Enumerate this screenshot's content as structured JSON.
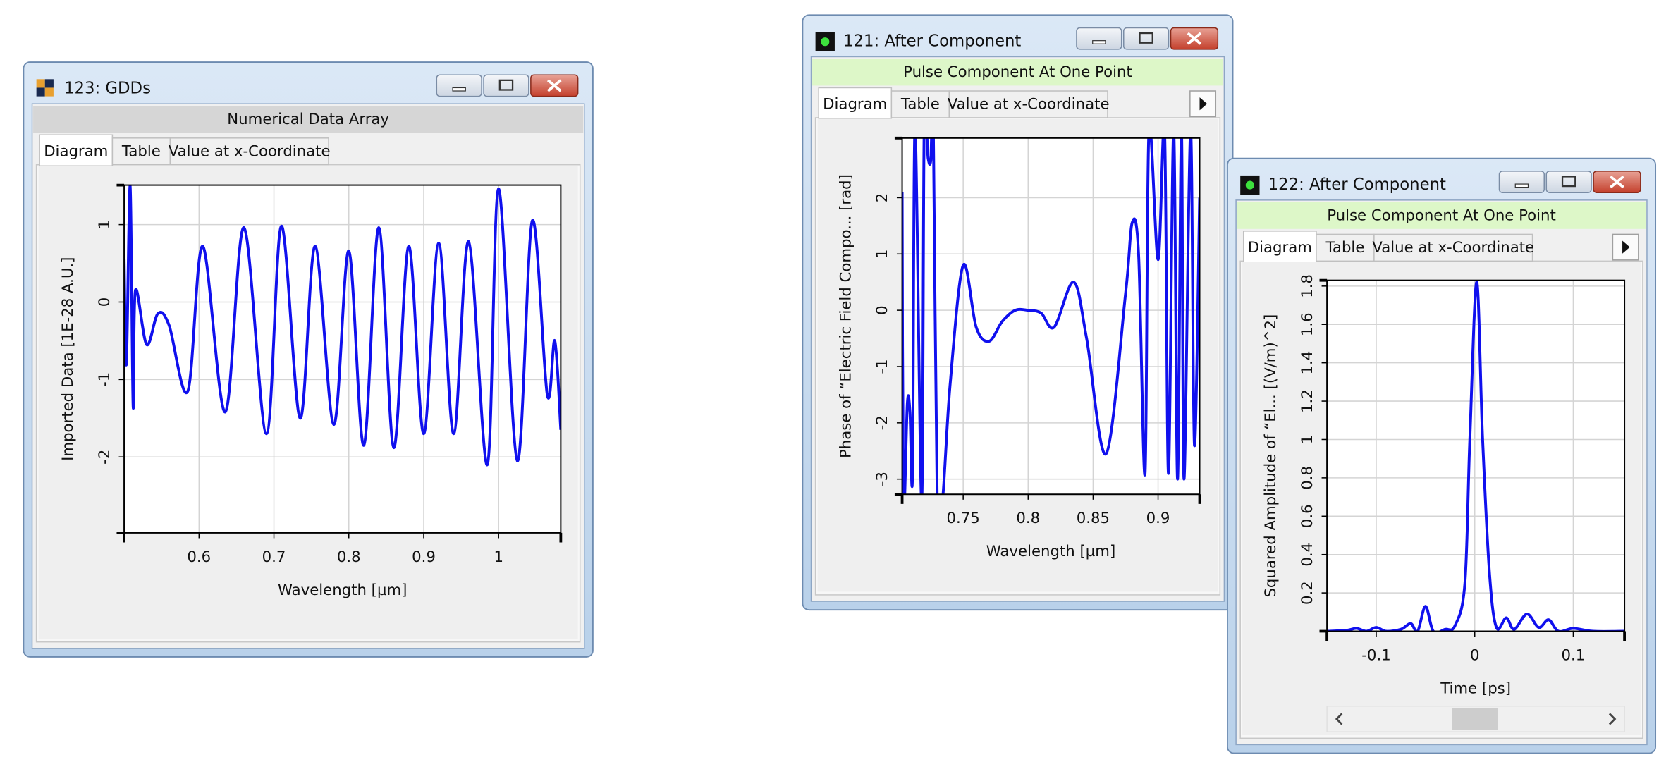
{
  "windows": [
    {
      "title": "123: GDDs",
      "subtitle": "Numerical Data Array",
      "tabs": [
        "Diagram",
        "Table",
        "Value at x-Coordinate"
      ],
      "chart": {
        "type": "line",
        "xlabel": "Wavelength [µm]",
        "ylabel": "Imported Data [1E-28 A.U.]",
        "color": "#1010ee",
        "grid": true,
        "xlim": [
          0.5,
          1.083
        ],
        "ylim": [
          -2.98,
          1.51
        ],
        "xticks": [
          0.6,
          0.7,
          0.8,
          0.9,
          1
        ],
        "yticks": [
          -2,
          -1,
          0,
          1
        ],
        "x": [
          0.5,
          0.503,
          0.508,
          0.512,
          0.515,
          0.53,
          0.545,
          0.56,
          0.585,
          0.605,
          0.635,
          0.66,
          0.69,
          0.71,
          0.735,
          0.755,
          0.78,
          0.8,
          0.82,
          0.84,
          0.86,
          0.88,
          0.9,
          0.92,
          0.94,
          0.96,
          0.985,
          1.0,
          1.025,
          1.045,
          1.065,
          1.075,
          1.083
        ],
        "values": [
          0.55,
          -0.8,
          1.5,
          -1.35,
          0.15,
          -0.55,
          -0.15,
          -0.3,
          -1.15,
          0.72,
          -1.42,
          0.96,
          -1.7,
          0.98,
          -1.5,
          0.72,
          -1.58,
          0.66,
          -1.85,
          0.96,
          -1.88,
          0.72,
          -1.7,
          0.76,
          -1.7,
          0.78,
          -2.1,
          1.46,
          -2.05,
          1.05,
          -1.2,
          -0.5,
          -1.65
        ]
      }
    },
    {
      "title": "121: After Component",
      "subtitle": "Pulse Component At One Point",
      "tabs": [
        "Diagram",
        "Table",
        "Value at x-Coordinate"
      ],
      "chart": {
        "type": "line",
        "xlabel": "Wavelength [µm]",
        "ylabel": "Phase of “Electric Field Compo... [rad]",
        "color": "#1010ee",
        "grid": true,
        "xlim": [
          0.703,
          0.932
        ],
        "ylim": [
          -3.27,
          3.06
        ],
        "xticks": [
          0.75,
          0.8,
          0.85,
          0.9
        ],
        "yticks": [
          -3,
          -2,
          -1,
          0,
          1,
          2
        ],
        "x": [
          0.703,
          0.704,
          0.707,
          0.709,
          0.711,
          0.713,
          0.718,
          0.72,
          0.723,
          0.725,
          0.727,
          0.73,
          0.734,
          0.74,
          0.75,
          0.76,
          0.77,
          0.78,
          0.79,
          0.8,
          0.81,
          0.82,
          0.835,
          0.845,
          0.86,
          0.875,
          0.88,
          0.885,
          0.89,
          0.893,
          0.9,
          0.905,
          0.908,
          0.912,
          0.915,
          0.918,
          0.92,
          0.925,
          0.928,
          0.932
        ],
        "values": [
          2.1,
          -3.5,
          -1.65,
          -1.8,
          -2.9,
          3.3,
          -3.4,
          3.3,
          2.7,
          2.65,
          3.3,
          -3.4,
          -3.4,
          -1.3,
          0.8,
          -0.3,
          -0.55,
          -0.2,
          0,
          0,
          -0.05,
          -0.3,
          0.5,
          -0.5,
          -2.55,
          0.3,
          1.55,
          1.0,
          -2.9,
          3.2,
          0.9,
          3.2,
          -2.9,
          3.2,
          -3.0,
          3.2,
          -3.0,
          3.2,
          -2.4,
          2.0
        ]
      }
    },
    {
      "title": "122: After Component",
      "subtitle": "Pulse Component At One Point",
      "tabs": [
        "Diagram",
        "Table",
        "Value at x-Coordinate"
      ],
      "chart": {
        "type": "line",
        "xlabel": "Time [ps]",
        "ylabel": "Squared Amplitude of “El... [(V/m)^2]",
        "color": "#1010ee",
        "grid": true,
        "xlim": [
          -0.15,
          0.152
        ],
        "ylim": [
          0,
          1.83
        ],
        "xticks": [
          -0.1,
          0,
          0.1
        ],
        "yticks": [
          0.2,
          0.4,
          0.6,
          0.8,
          1,
          1.2,
          1.4,
          1.6,
          1.8
        ],
        "x": [
          -0.15,
          -0.13,
          -0.12,
          -0.11,
          -0.1,
          -0.09,
          -0.075,
          -0.065,
          -0.058,
          -0.05,
          -0.042,
          -0.03,
          -0.02,
          -0.01,
          -0.005,
          0.002,
          0.008,
          0.015,
          0.022,
          0.032,
          0.04,
          0.053,
          0.065,
          0.075,
          0.085,
          0.1,
          0.12,
          0.152
        ],
        "values": [
          0,
          0.005,
          0.015,
          0,
          0.02,
          0,
          0.01,
          0.04,
          0,
          0.13,
          0,
          0.01,
          0.03,
          0.25,
          1.0,
          1.82,
          1.0,
          0.3,
          0.02,
          0.07,
          0.01,
          0.09,
          0.02,
          0.06,
          0,
          0.015,
          0,
          0
        ]
      }
    }
  ]
}
